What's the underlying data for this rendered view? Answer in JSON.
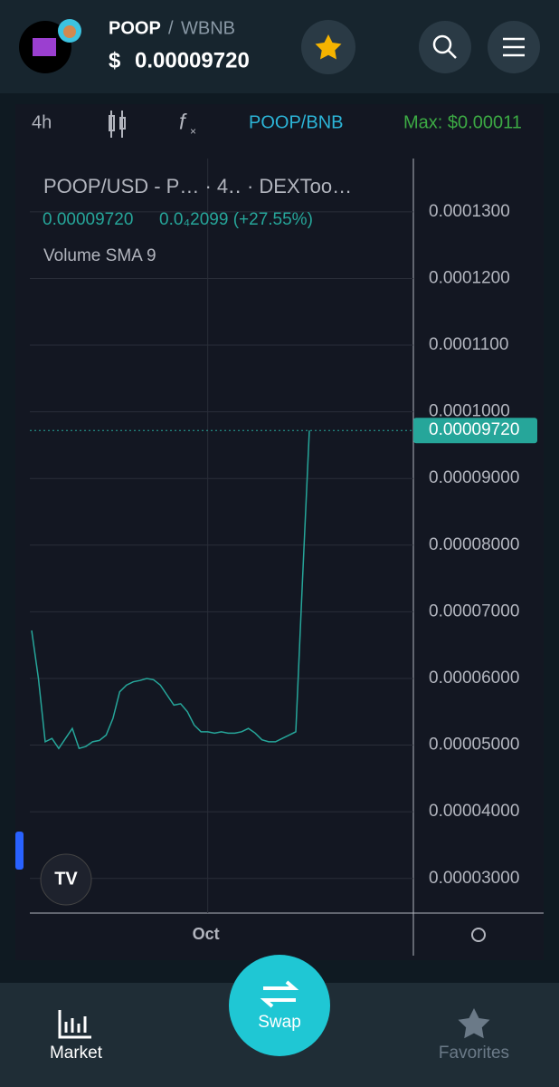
{
  "header": {
    "symbol": "POOP",
    "separator": "/",
    "quote": "WBNB",
    "currency": "$",
    "price": "0.00009720"
  },
  "toolbar": {
    "interval": "4h",
    "pair": "POOP/BNB",
    "max": "Max: $0.00011"
  },
  "legend": {
    "title": "POOP/USD - P…  · 4‥ · DEXToo…",
    "last": "0.00009720",
    "change": "0.0₄2099 (+27.55%)",
    "study": "Volume SMA 9"
  },
  "last_price_label": "0.00009720",
  "nav": {
    "market": "Market",
    "swap": "Swap",
    "favorites": "Favorites"
  },
  "chart_data": {
    "type": "line",
    "categories": [
      null,
      null,
      null,
      null,
      null,
      null,
      null,
      null,
      null,
      null,
      null,
      null,
      null,
      null,
      null,
      null,
      null,
      null,
      null,
      null,
      null,
      null,
      null,
      null,
      null,
      null,
      "Oct",
      null,
      null,
      null,
      null,
      null,
      null,
      null,
      null,
      null,
      null,
      null,
      null,
      null,
      null,
      null
    ],
    "series": [
      {
        "name": "POOP/USD",
        "color": "#26a69a",
        "values": [
          6.72e-05,
          6e-05,
          5.05e-05,
          5.1e-05,
          4.95e-05,
          5.1e-05,
          5.25e-05,
          4.95e-05,
          4.98e-05,
          5.05e-05,
          5.07e-05,
          5.15e-05,
          5.4e-05,
          5.8e-05,
          5.9e-05,
          5.95e-05,
          5.97e-05,
          6e-05,
          5.98e-05,
          5.9e-05,
          5.75e-05,
          5.6e-05,
          5.62e-05,
          5.5e-05,
          5.3e-05,
          5.2e-05,
          5.2e-05,
          5.18e-05,
          5.2e-05,
          5.18e-05,
          5.18e-05,
          5.2e-05,
          5.25e-05,
          5.18e-05,
          5.08e-05,
          5.05e-05,
          5.05e-05,
          5.1e-05,
          5.15e-05,
          5.2e-05,
          7.5e-05,
          9.72e-05
        ]
      }
    ],
    "ylim": [
      2.48e-05,
      0.000138
    ],
    "yticks": [
      {
        "value": 3e-05,
        "label": "0.00003000"
      },
      {
        "value": 4e-05,
        "label": "0.00004000"
      },
      {
        "value": 5e-05,
        "label": "0.00005000"
      },
      {
        "value": 6e-05,
        "label": "0.00006000"
      },
      {
        "value": 7e-05,
        "label": "0.00007000"
      },
      {
        "value": 8e-05,
        "label": "0.00008000"
      },
      {
        "value": 9e-05,
        "label": "0.00009000"
      },
      {
        "value": 0.0001,
        "label": "0.0001000"
      },
      {
        "value": 0.00011,
        "label": "0.0001100"
      },
      {
        "value": 0.00012,
        "label": "0.0001200"
      },
      {
        "value": 0.00013,
        "label": "0.0001300"
      }
    ],
    "grid": true
  }
}
